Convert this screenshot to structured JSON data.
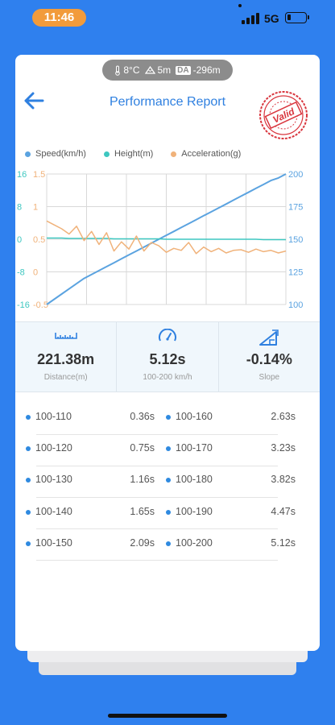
{
  "status_bar": {
    "time": "11:46",
    "network": "5G"
  },
  "environment": {
    "temperature": "8°C",
    "altitude": "5m",
    "da_label": "DA",
    "density_altitude": "-296m"
  },
  "header": {
    "title": "Performance Report",
    "stamp_text": "Valid"
  },
  "legend": [
    {
      "label": "Speed(km/h)",
      "color": "#5ba3e0"
    },
    {
      "label": "Height(m)",
      "color": "#3ec7c0"
    },
    {
      "label": "Acceleration(g)",
      "color": "#f0b27a"
    }
  ],
  "chart_data": {
    "type": "line",
    "axes": {
      "height_ticks": [
        "16",
        "8",
        "0",
        "-8",
        "-16"
      ],
      "acceleration_ticks": [
        "1.5",
        "1",
        "0.5",
        "0",
        "-0.5"
      ],
      "speed_ticks": [
        "200",
        "175",
        "150",
        "125",
        "100"
      ],
      "height_range": [
        -16,
        16
      ],
      "acceleration_range": [
        -0.5,
        1.5
      ],
      "speed_range": [
        100,
        200
      ]
    },
    "grid": true,
    "series": [
      {
        "name": "Speed(km/h)",
        "color": "#5ba3e0",
        "values": [
          100,
          104,
          108,
          112,
          116,
          120,
          123,
          126,
          129,
          132,
          135,
          138,
          141,
          144,
          147,
          150,
          153,
          156,
          159,
          162,
          165,
          168,
          171,
          174,
          177,
          180,
          183,
          186,
          189,
          192,
          195,
          197,
          200
        ]
      },
      {
        "name": "Height(m)",
        "color": "#3ec7c0",
        "values": [
          0.3,
          0.3,
          0.3,
          0.2,
          0.2,
          0.2,
          0.2,
          0.2,
          0.2,
          0.1,
          0.1,
          0.1,
          0.1,
          0.1,
          0.1,
          0.1,
          0.0,
          0.0,
          0.0,
          0.0,
          0.0,
          0.0,
          0.0,
          0.0,
          0.0,
          0.0,
          0.0,
          0.0,
          0.0,
          -0.1,
          -0.1,
          -0.1,
          -0.1
        ]
      },
      {
        "name": "Acceleration(g)",
        "color": "#f0b27a",
        "values": [
          0.78,
          0.72,
          0.66,
          0.58,
          0.7,
          0.48,
          0.62,
          0.42,
          0.6,
          0.32,
          0.46,
          0.35,
          0.55,
          0.32,
          0.45,
          0.4,
          0.3,
          0.36,
          0.33,
          0.45,
          0.28,
          0.38,
          0.31,
          0.36,
          0.29,
          0.33,
          0.34,
          0.3,
          0.35,
          0.31,
          0.33,
          0.29,
          0.32
        ]
      }
    ]
  },
  "stats": [
    {
      "icon": "ruler-icon",
      "value": "221.38m",
      "label": "Distance(m)"
    },
    {
      "icon": "speedometer-icon",
      "value": "5.12s",
      "label": "100-200 km/h"
    },
    {
      "icon": "slope-icon",
      "value": "-0.14%",
      "label": "Slope"
    }
  ],
  "splits": [
    {
      "label": "100-110",
      "value": "0.36s"
    },
    {
      "label": "100-160",
      "value": "2.63s"
    },
    {
      "label": "100-120",
      "value": "0.75s"
    },
    {
      "label": "100-170",
      "value": "3.23s"
    },
    {
      "label": "100-130",
      "value": "1.16s"
    },
    {
      "label": "100-180",
      "value": "3.82s"
    },
    {
      "label": "100-140",
      "value": "1.65s"
    },
    {
      "label": "100-190",
      "value": "4.47s"
    },
    {
      "label": "100-150",
      "value": "2.09s"
    },
    {
      "label": "100-200",
      "value": "5.12s"
    }
  ]
}
